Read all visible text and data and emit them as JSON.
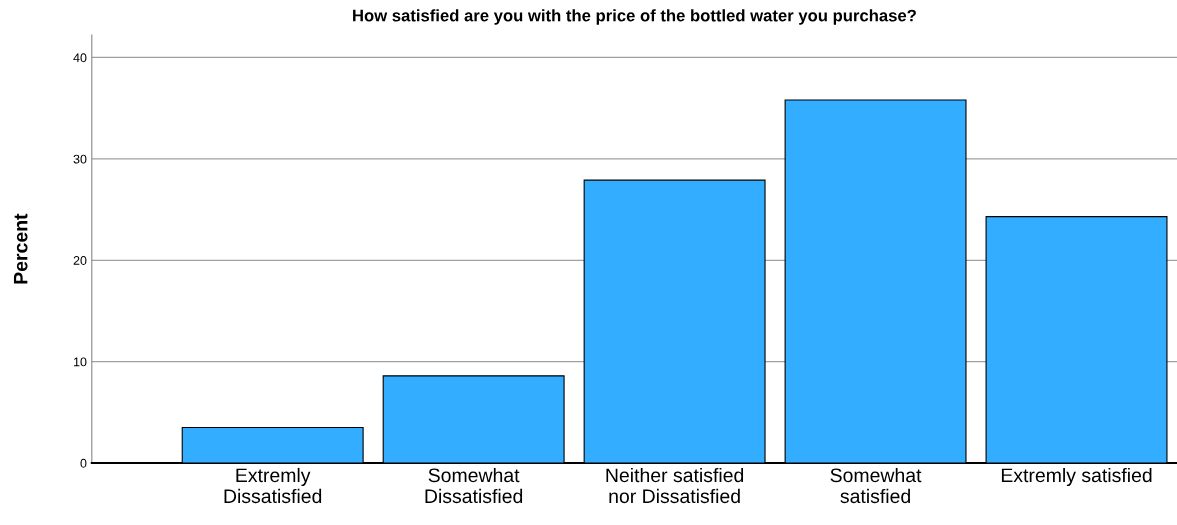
{
  "chart_data": {
    "type": "bar",
    "title": "How satisfied are you with the price of the bottled water you purchase?",
    "ylabel": "Percent",
    "categories": [
      "Extremly\nDissatisfied",
      "Somewhat\nDissatisfied",
      "Neither satisfied\nnor Dissatisfied",
      "Somewhat\nsatisfied",
      "Extremly satisfied"
    ],
    "values": [
      3.5,
      8.6,
      27.9,
      35.8,
      24.3
    ],
    "color": "#33adff",
    "ylim": [
      0,
      42.2
    ],
    "yticks": [
      0,
      10,
      20,
      30,
      40
    ],
    "grid": "y"
  }
}
